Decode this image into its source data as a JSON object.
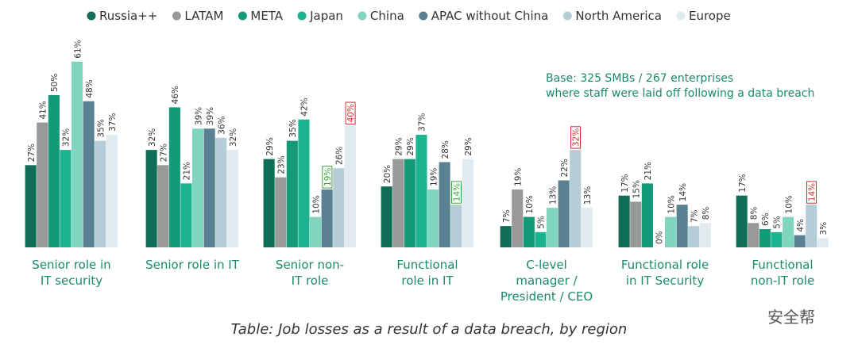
{
  "chart_data": {
    "type": "bar",
    "title": "Table: Job losses as a result of a data breach, by region",
    "annotation": "Base: 325 SMBs / 267 enterprises\nwhere staff were laid off following a data breach",
    "watermark": "安全帮",
    "categories": [
      "Senior role in\nIT security",
      "Senior role in IT",
      "Senior non-\nIT role",
      "Functional\nrole in IT",
      "C-level\nmanager /\nPresident / CEO",
      "Functional role\nin IT Security",
      "Functional\nnon-IT role"
    ],
    "series": [
      {
        "name": "Russia++",
        "color": "#0f6e55",
        "values": [
          27,
          32,
          29,
          20,
          7,
          17,
          17
        ],
        "value_labels": [
          "27%",
          "32%",
          "29%",
          "20%",
          "7%",
          "17%",
          "17%"
        ],
        "label_boxes": [
          null,
          null,
          null,
          null,
          null,
          null,
          null
        ]
      },
      {
        "name": "LATAM",
        "color": "#999999",
        "values": [
          41,
          27,
          23,
          29,
          19,
          15,
          8
        ],
        "value_labels": [
          "41%",
          "27%",
          "23%",
          "29%",
          "19%",
          "15%",
          "8%"
        ],
        "label_boxes": [
          null,
          null,
          null,
          null,
          null,
          null,
          null
        ]
      },
      {
        "name": "META",
        "color": "#149a78",
        "values": [
          50,
          46,
          35,
          29,
          10,
          21,
          6
        ],
        "value_labels": [
          "50%",
          "46%",
          "35%",
          "29%",
          "10%",
          "21%",
          "6%"
        ],
        "label_boxes": [
          null,
          null,
          null,
          null,
          null,
          null,
          null
        ]
      },
      {
        "name": "Japan",
        "color": "#1bb390",
        "values": [
          32,
          21,
          42,
          37,
          5,
          0,
          5
        ],
        "value_labels": [
          "32%",
          "21%",
          "42%",
          "37%",
          "5%",
          "0%",
          "5%"
        ],
        "label_boxes": [
          null,
          null,
          null,
          null,
          null,
          null,
          null
        ]
      },
      {
        "name": "China",
        "color": "#7fd5bd",
        "values": [
          61,
          39,
          10,
          19,
          13,
          10,
          10
        ],
        "value_labels": [
          "61%",
          "39%",
          "10%",
          "19%",
          "13%",
          "10%",
          "10%"
        ],
        "label_boxes": [
          null,
          null,
          null,
          null,
          null,
          null,
          null
        ]
      },
      {
        "name": "APAC without China",
        "color": "#5a8191",
        "values": [
          48,
          39,
          19,
          28,
          22,
          14,
          4
        ],
        "value_labels": [
          "48%",
          "39%",
          "19%",
          "28%",
          "22%",
          "14%",
          "4%"
        ],
        "label_boxes": [
          null,
          null,
          "#3aa63a",
          null,
          null,
          null,
          null
        ]
      },
      {
        "name": "North America",
        "color": "#b4cdd6",
        "values": [
          35,
          36,
          26,
          14,
          32,
          7,
          14
        ],
        "value_labels": [
          "35%",
          "36%",
          "26%",
          "14%",
          "32%",
          "7%",
          "14%"
        ],
        "label_boxes": [
          null,
          null,
          null,
          "#3aa63a",
          "#d0312d",
          null,
          "#d0312d"
        ]
      },
      {
        "name": "Europe",
        "color": "#e0eaef",
        "values": [
          37,
          32,
          40,
          29,
          13,
          8,
          3
        ],
        "value_labels": [
          "37%",
          "32%",
          "40%",
          "29%",
          "13%",
          "8%",
          "3%"
        ],
        "label_boxes": [
          null,
          null,
          "#d0312d",
          null,
          null,
          null,
          null
        ]
      }
    ]
  }
}
